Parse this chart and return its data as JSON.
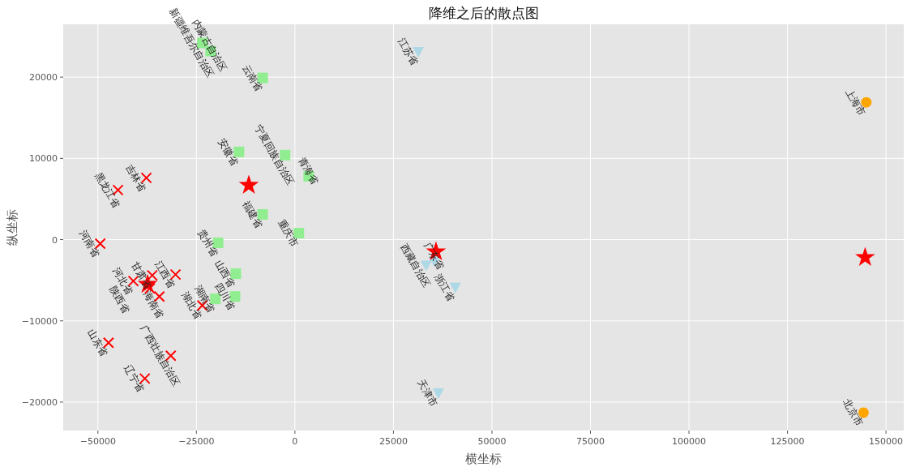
{
  "chart_data": {
    "type": "scatter",
    "title": "降维之后的散点图",
    "xlabel": "横坐标",
    "ylabel": "纵坐标",
    "xlim": [
      -58800,
      154500
    ],
    "ylim": [
      -23500,
      26500
    ],
    "xticks": [
      -50000,
      -25000,
      0,
      25000,
      50000,
      75000,
      100000,
      125000,
      150000
    ],
    "yticks": [
      -20000,
      -10000,
      0,
      10000,
      20000
    ],
    "grid": true,
    "series": [
      {
        "color": "#ff0000",
        "marker": "cross",
        "x": [
          -37700,
          -44900,
          -49400,
          -41000,
          -36200,
          -34400,
          -30300,
          -23500,
          -47300,
          -31500,
          -38100,
          -36800
        ],
        "values": [
          7600,
          6100,
          -500,
          -5100,
          -4400,
          -7000,
          -4300,
          -8100,
          -12700,
          -14300,
          -17100,
          -6000
        ]
      },
      {
        "color": "#90ee90",
        "marker": "square",
        "x": [
          -23500,
          -21400,
          -8200,
          -14200,
          -2500,
          3500,
          -8200,
          1000,
          -19500,
          -15000,
          -15200,
          -20200
        ],
        "values": [
          24200,
          23200,
          19900,
          10800,
          10400,
          7800,
          3100,
          800,
          -400,
          -4200,
          -7000,
          -7300
        ]
      },
      {
        "color": "#add8e6",
        "marker": "triangle",
        "x": [
          31300,
          33300,
          35400,
          40700,
          36400
        ],
        "values": [
          23100,
          -3200,
          -2700,
          -5900,
          -18900
        ]
      },
      {
        "color": "#ffa500",
        "marker": "circle",
        "x": [
          145000,
          144300
        ],
        "values": [
          16900,
          -21300
        ]
      },
      {
        "color": "#ff0000",
        "marker": "star",
        "x": [
          -37400,
          -11700,
          35800,
          144700
        ],
        "values": [
          -5500,
          6700,
          -1500,
          -2200
        ]
      }
    ],
    "annotations": [
      {
        "text": "吉林省",
        "x": -37700,
        "y": 7600
      },
      {
        "text": "黑龙江省",
        "x": -44900,
        "y": 6100
      },
      {
        "text": "河南省",
        "x": -49400,
        "y": -500
      },
      {
        "text": "河北省",
        "x": -41000,
        "y": -5100
      },
      {
        "text": "甘肃省",
        "x": -36200,
        "y": -4400
      },
      {
        "text": "海南省",
        "x": -34400,
        "y": -7000
      },
      {
        "text": "江西省",
        "x": -30300,
        "y": -4300
      },
      {
        "text": "湖北省",
        "x": -23500,
        "y": -8100
      },
      {
        "text": "山东省",
        "x": -47300,
        "y": -12700
      },
      {
        "text": "广西壮族自治区",
        "x": -31500,
        "y": -14300
      },
      {
        "text": "辽宁省",
        "x": -38100,
        "y": -17100
      },
      {
        "text": "陕西省",
        "x": -36800,
        "y": -6000
      },
      {
        "text": "新疆维吾尔自治区",
        "x": -23500,
        "y": 24200
      },
      {
        "text": "内蒙古自治区",
        "x": -21400,
        "y": 23200
      },
      {
        "text": "云南省",
        "x": -8200,
        "y": 19900
      },
      {
        "text": "安徽省",
        "x": -14200,
        "y": 10800
      },
      {
        "text": "宁夏回族自治区",
        "x": -2500,
        "y": 10400
      },
      {
        "text": "青海省",
        "x": 3500,
        "y": 7800
      },
      {
        "text": "福建省",
        "x": -8200,
        "y": 3100
      },
      {
        "text": "重庆市",
        "x": 1000,
        "y": 800
      },
      {
        "text": "贵州省",
        "x": -19500,
        "y": -400
      },
      {
        "text": "山西省",
        "x": -15000,
        "y": -4200
      },
      {
        "text": "四川省",
        "x": -15200,
        "y": -7000
      },
      {
        "text": "湖南省",
        "x": -20200,
        "y": -7300
      },
      {
        "text": "江苏省",
        "x": 31300,
        "y": 23100
      },
      {
        "text": "西藏自治区",
        "x": 33300,
        "y": -3200
      },
      {
        "text": "广东省",
        "x": 35400,
        "y": -2700
      },
      {
        "text": "浙江省",
        "x": 40700,
        "y": -5900
      },
      {
        "text": "天津市",
        "x": 36400,
        "y": -18900
      },
      {
        "text": "上海市",
        "x": 145000,
        "y": 16900
      },
      {
        "text": "北京市",
        "x": 144300,
        "y": -21300
      }
    ]
  }
}
